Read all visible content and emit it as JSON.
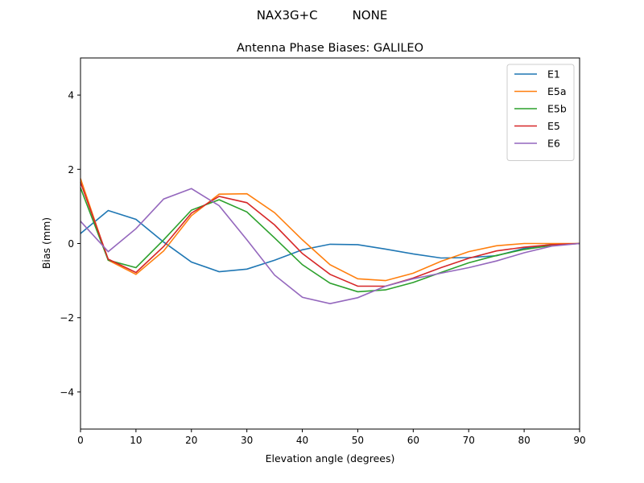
{
  "chart_data": {
    "type": "line",
    "suptitle": "NAX3G+C         NONE",
    "title": "Antenna Phase Biases: GALILEO",
    "xlabel": "Elevation angle (degrees)",
    "ylabel": "Bias (mm)",
    "xlim": [
      0,
      90
    ],
    "ylim": [
      -5,
      5
    ],
    "xticks": [
      0,
      10,
      20,
      30,
      40,
      50,
      60,
      70,
      80,
      90
    ],
    "yticks": [
      -4,
      -2,
      0,
      2,
      4
    ],
    "ytick_labels": [
      "−4",
      "−2",
      "0",
      "2",
      "4"
    ],
    "grid": false,
    "legend_position": "top-right",
    "x": [
      0,
      5,
      10,
      15,
      20,
      25,
      30,
      35,
      40,
      45,
      50,
      55,
      60,
      65,
      70,
      75,
      80,
      85,
      90
    ],
    "series": [
      {
        "name": "E1",
        "color": "#1f77b4",
        "values": [
          0.27,
          0.89,
          0.65,
          0.04,
          -0.5,
          -0.76,
          -0.69,
          -0.45,
          -0.17,
          -0.02,
          -0.03,
          -0.15,
          -0.28,
          -0.39,
          -0.38,
          -0.33,
          -0.13,
          -0.02,
          0
        ]
      },
      {
        "name": "E5a",
        "color": "#ff7f0e",
        "values": [
          1.75,
          -0.45,
          -0.83,
          -0.2,
          0.75,
          1.33,
          1.34,
          0.83,
          0.1,
          -0.57,
          -0.95,
          -1.0,
          -0.8,
          -0.48,
          -0.22,
          -0.06,
          0,
          0,
          0
        ]
      },
      {
        "name": "E5b",
        "color": "#2ca02c",
        "values": [
          1.5,
          -0.45,
          -0.65,
          0.1,
          0.9,
          1.18,
          0.85,
          0.15,
          -0.57,
          -1.07,
          -1.3,
          -1.25,
          -1.05,
          -0.78,
          -0.52,
          -0.32,
          -0.16,
          -0.05,
          0
        ]
      },
      {
        "name": "E5",
        "color": "#d62728",
        "values": [
          1.65,
          -0.42,
          -0.78,
          -0.08,
          0.82,
          1.27,
          1.1,
          0.5,
          -0.27,
          -0.83,
          -1.15,
          -1.15,
          -0.93,
          -0.65,
          -0.4,
          -0.2,
          -0.1,
          -0.03,
          0
        ]
      },
      {
        "name": "E6",
        "color": "#9467bd",
        "values": [
          0.6,
          -0.22,
          0.4,
          1.2,
          1.48,
          1.02,
          0.1,
          -0.85,
          -1.45,
          -1.62,
          -1.46,
          -1.15,
          -0.95,
          -0.8,
          -0.65,
          -0.47,
          -0.25,
          -0.07,
          0
        ]
      }
    ]
  }
}
